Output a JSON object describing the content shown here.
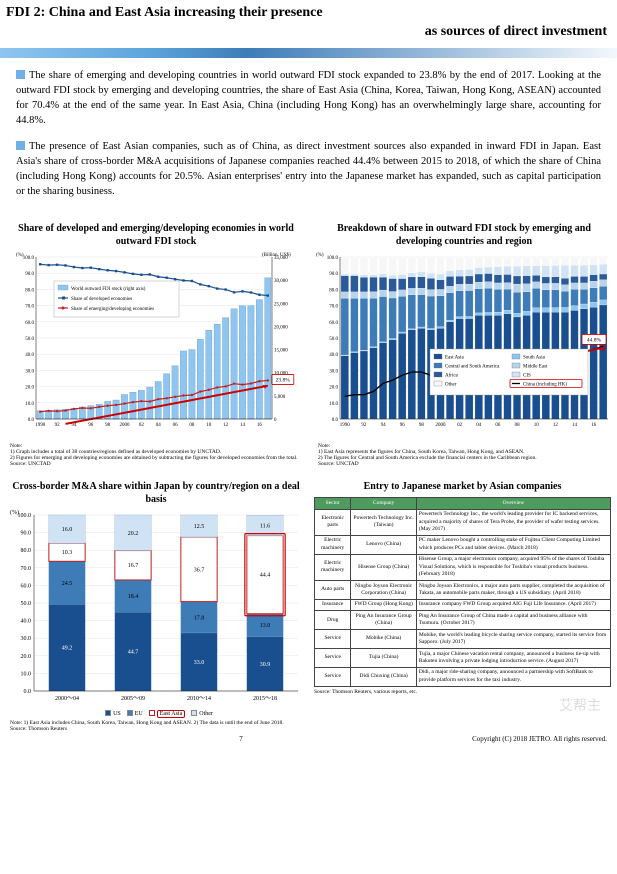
{
  "title": {
    "line1": "FDI 2: China and East Asia increasing their presence",
    "line2": "as sources of direct investment"
  },
  "paragraphs": [
    "The share of emerging and developing countries in world outward FDI stock expanded to 23.8% by the end of 2017. Looking at the outward FDI stock by emerging and developing countries, the share of East Asia (China, Korea, Taiwan, Hong Kong, ASEAN) accounted for 70.4% at the end of the same year. In East Asia, China (including Hong Kong) has an overwhelmingly large share, accounting for 44.8%.",
    "The presence of East Asian companies, such as of China, as direct investment sources also expanded in inward FDI in Japan. East Asia's share of cross-border M&A acquisitions of Japanese companies reached 44.4% between 2015 to 2018, of which the share of China (including Hong Kong) accounts for 20.5%. Asian enterprises' entry into the Japanese market has expanded, such as capital participation or the sharing business."
  ],
  "chart_left_top": {
    "title": "Share of developed and emerging/developing economies in world outward FDI stock",
    "y_left_label": "(%)",
    "y_right_label": "(Billion, US$)",
    "x_start": 1990,
    "x_end": 2017,
    "x_ticks": [
      "1990",
      "92",
      "94",
      "96",
      "98",
      "2000",
      "02",
      "04",
      "06",
      "08",
      "10",
      "12",
      "14",
      "16",
      ""
    ],
    "ylim_left": [
      0,
      100
    ],
    "yticks_left": [
      0,
      10,
      20,
      30,
      40,
      50,
      60,
      70,
      80,
      90,
      100
    ],
    "ylim_right": [
      0,
      35000
    ],
    "yticks_right": [
      0,
      5000,
      10000,
      15000,
      20000,
      25000,
      30000,
      35000
    ],
    "legend": [
      "World outward FDI stock (right axis)",
      "Share of developed economies",
      "Share of emerging/developing economies"
    ],
    "bar_color": "#8fc6f0",
    "line_developed_color": "#1a4f8f",
    "line_emerging_color": "#c02020",
    "callout_value": "23.8%",
    "bars": [
      1800,
      1900,
      2000,
      2100,
      2300,
      2600,
      2900,
      3200,
      3800,
      4100,
      5300,
      5800,
      6200,
      6900,
      8100,
      9800,
      11500,
      14700,
      15000,
      17200,
      19200,
      20500,
      21900,
      23800,
      24500,
      24500,
      25800,
      30500
    ],
    "share_dev": [
      95.5,
      95.0,
      95.2,
      94.8,
      93.8,
      93.2,
      93.4,
      92.5,
      91.8,
      91.3,
      90.5,
      89.6,
      89.0,
      89.2,
      87.8,
      87.2,
      86.3,
      85.5,
      85.2,
      83.1,
      82.0,
      80.5,
      79.9,
      78.2,
      78.8,
      78.1,
      76.7,
      76.2
    ],
    "share_emer": [
      4.5,
      5.0,
      4.8,
      5.2,
      6.2,
      6.8,
      6.6,
      7.5,
      8.2,
      8.7,
      9.5,
      10.4,
      11.0,
      10.8,
      12.2,
      12.8,
      13.7,
      14.5,
      14.8,
      16.9,
      18.0,
      19.5,
      20.1,
      21.8,
      21.2,
      21.9,
      23.3,
      23.8
    ],
    "notes": "Note:\n1) Graph includes a total of 38 countries/regions defined as developed economies by UNCTAD.\n2) Figures for emerging and developing economies are obtained by subtracting the figures for developed economies from the total.\nSource: UNCTAD",
    "bg": "#ffffff",
    "grid": "#dddddd"
  },
  "chart_right_top": {
    "title": "Breakdown of share in outward FDI stock by emerging and developing countries and region",
    "ylim": [
      0,
      100
    ],
    "y_label": "(%)",
    "x_ticks": [
      "1990",
      "92",
      "94",
      "96",
      "98",
      "2000",
      "02",
      "04",
      "06",
      "08",
      "10",
      "12",
      "14",
      "16",
      ""
    ],
    "legend": [
      "East Asia",
      "South Asia",
      "Central and South America",
      "Middle East",
      "Africa",
      "CIS",
      "Other",
      "China (including HK)"
    ],
    "colors": {
      "east_asia": "#1a4f8f",
      "south_asia": "#8fc6f0",
      "csa": "#3e7cb8",
      "middle_east": "#b8d4ec",
      "africa": "#2a5a9a",
      "cis": "#cfe3f5",
      "other": "#f7f7f7",
      "china_line": "#000000"
    },
    "callout_value": "44.8%",
    "years": 28,
    "east_asia": [
      39,
      41,
      42,
      44,
      47,
      49,
      53,
      55,
      56,
      55,
      56,
      60,
      62,
      62,
      64,
      64,
      64,
      65,
      63,
      64,
      66,
      66,
      66,
      66,
      67,
      68,
      69,
      70.4
    ],
    "south_asia": [
      0.5,
      0.5,
      0.5,
      0.6,
      0.6,
      0.7,
      0.7,
      0.7,
      0.8,
      0.9,
      1.0,
      1.0,
      1.2,
      1.3,
      1.5,
      1.8,
      2.0,
      2.2,
      2.3,
      2.5,
      2.7,
      2.7,
      2.8,
      2.9,
      3.0,
      3.0,
      3.1,
      3.1
    ],
    "csa": [
      35,
      33,
      32,
      30,
      28,
      25,
      22,
      21,
      20,
      20,
      19,
      17,
      16,
      16,
      15,
      15,
      14,
      13,
      13,
      12,
      12,
      11,
      11,
      10,
      10,
      9,
      9,
      8.5
    ],
    "middle_east": [
      4,
      4,
      4,
      4,
      4,
      4,
      4,
      4,
      4,
      4,
      4,
      4,
      4,
      4,
      4,
      4,
      4,
      4,
      5,
      5,
      4,
      4,
      4,
      4,
      4,
      4,
      4,
      4
    ],
    "africa": [
      10,
      10,
      9,
      9,
      8,
      8,
      7,
      7,
      7,
      7,
      6,
      6,
      5,
      5,
      5,
      5,
      5,
      5,
      5,
      5,
      4,
      4,
      4,
      4,
      4,
      4,
      4,
      3.5
    ],
    "cis": [
      1,
      1,
      1.5,
      1.5,
      2,
      2,
      2.5,
      2.5,
      3,
      3,
      3.5,
      3.5,
      4,
      4,
      4,
      4,
      5,
      5,
      6,
      6,
      6,
      7,
      7,
      8,
      7,
      7,
      6,
      6
    ],
    "other": [
      10.5,
      10.5,
      11,
      10.9,
      10.4,
      11.3,
      10.8,
      9.8,
      9.2,
      10.1,
      10.5,
      8.5,
      7.8,
      7.7,
      6.5,
      6.2,
      6,
      5.8,
      5.7,
      5.5,
      5.3,
      5.3,
      5.2,
      5.1,
      5,
      5,
      4.9,
      4.5
    ],
    "china_line": [
      14,
      15,
      15,
      17,
      22,
      24,
      27,
      29,
      29,
      27,
      28,
      32,
      33,
      33,
      33,
      32,
      32,
      33,
      32,
      34,
      36,
      37,
      37,
      38,
      39,
      41,
      43,
      44.8
    ],
    "notes": "Note:\n1) East Asia represents the figures for China, South Korea, Taiwan, Hong Kong, and ASEAN.\n2) The figures for Central and South America exclude the financial centers in the Caribbean region.\nSource: UNCTAD"
  },
  "chart_left_bottom": {
    "title": "Cross-border M&A share within Japan by country/region on a deal basis",
    "y_label": "(%)",
    "ylim": [
      0,
      100
    ],
    "yticks": [
      0,
      10,
      20,
      30,
      40,
      50,
      60,
      70,
      80,
      90,
      100
    ],
    "periods": [
      "2000～04",
      "2005～09",
      "2010～14",
      "2015～18"
    ],
    "series": {
      "US": {
        "color": "#1a4f8f",
        "values": [
          49.2,
          44.7,
          33.0,
          30.9
        ]
      },
      "EU": {
        "color": "#3e7cb8",
        "values": [
          24.5,
          18.4,
          17.8,
          13.0
        ]
      },
      "East_Asia": {
        "color": "#ffffff",
        "border": "#c02020",
        "values": [
          10.3,
          16.7,
          36.7,
          44.4
        ]
      },
      "Other": {
        "color": "#cfe3f5",
        "values": [
          16.0,
          20.2,
          12.5,
          11.6
        ]
      }
    },
    "legend": [
      "US",
      "EU",
      "East Asia",
      "Other"
    ],
    "highlight_segment": {
      "period_index": 3,
      "series": "East_Asia"
    },
    "notes": "Note: 1) East Asia includes China, South Korea, Taiwan, Hong Kong and ASEAN. 2) The data is until the end of June 2018.\nSource: Thomson Reuters"
  },
  "table_right_bottom": {
    "title": "Entry to Japanese market by Asian companies",
    "headers": [
      "Sector",
      "Company",
      "Overview"
    ],
    "header_bg": "#4f9a5f",
    "rows": [
      [
        "Electronic parts",
        "Powertech Technology Inc. (Taiwan)",
        "Powertech Technology Inc., the world's leading provider for IC backend services, acquired a majority of shares of Tera Probe, the provider of wafer testing services. (May 2017)"
      ],
      [
        "Electric machinery",
        "Lenovo (China)",
        "PC maker Lenovo bought a controlling stake of Fujitsu Client Computing Limited which produces PCs and tablet devices. (March 2018)"
      ],
      [
        "Electric machinery",
        "Hisense Group (China)",
        "Hisense Group, a major electronics company, acquired 95% of the shares of Toshiba Visual Solutions, which is responsible for Toshiba's visual products business. (February 2018)"
      ],
      [
        "Auto parts",
        "Ningbo Joyson Electronic Corporation (China)",
        "Ningbo Joyson Electronics, a major auto parts supplier, completed the acquisition of Takata, an automobile parts maker, through a US subsidiary. (April 2018)"
      ],
      [
        "Insurance",
        "FWD Group (Hong Kong)",
        "Insurance company FWD Group acquired AIG Fuji Life Insurance. (April 2017)"
      ],
      [
        "Drug",
        "Ping An Insurance Group (China)",
        "Ping An Insurance Group of China made a capital and business alliance with Tsumura. (October 2017)"
      ],
      [
        "Service",
        "Mobike (China)",
        "Mobike, the world's leading bicycle sharing service company, started its service from Sapporo. (July 2017)"
      ],
      [
        "Service",
        "Tujia (China)",
        "Tujia, a major Chinese vacation rental company, announced a business tie-up with Rakuten involving a private lodging introduction service. (August 2017)"
      ],
      [
        "Service",
        "Didi Chuxing (China)",
        "Didi, a major ride-sharing company, announced a partnership with SoftBank to provide platform services for the taxi industry."
      ]
    ],
    "source": "Source: Thomson Reuters, various reports, etc."
  },
  "footer": {
    "page": "7",
    "copyright": "Copyright (C) 2018 JETRO. All rights reserved."
  },
  "watermark": "艾帮主"
}
